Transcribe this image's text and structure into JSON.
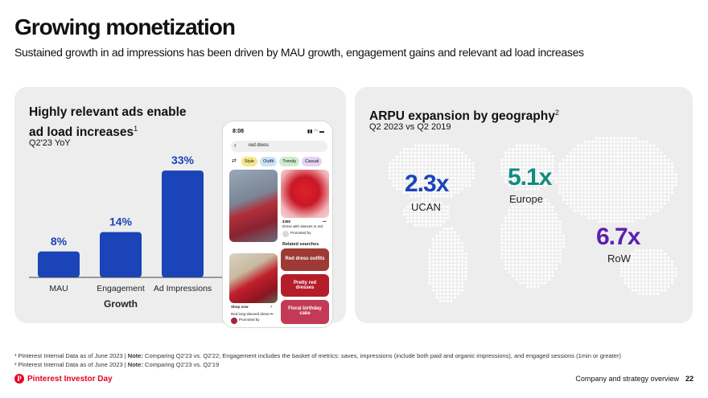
{
  "header": {
    "title": "Growing monetization",
    "subtitle": "Sustained growth in ad impressions has been driven by MAU growth, engagement gains and relevant ad load increases"
  },
  "left_card": {
    "title_line1": "Highly relevant ads enable",
    "title_line2": "ad load increases",
    "title_sup": "1",
    "subtitle": "Q2'23 YoY"
  },
  "chart_data": {
    "type": "bar",
    "categories": [
      "MAU",
      "Engagement",
      "Ad Impressions"
    ],
    "values": [
      8,
      14,
      33
    ],
    "data_labels": [
      "8%",
      "14%",
      "33%"
    ],
    "xlabel": "Growth",
    "ylim": [
      0,
      36
    ],
    "bar_color": "#1a44b8"
  },
  "phone": {
    "time": "8:08",
    "status_icons": "▮▮ ◠ ▬",
    "back_icon": "chevron-left-icon",
    "search_text": "red dress",
    "chips": [
      "Style",
      "Outfit",
      "Trendy",
      "Casual"
    ],
    "filter_icon": "filter-icon",
    "price": "$389",
    "product_desc": "Dress with sleeves in red",
    "promoted_by": "Promoted by",
    "related_title": "Related searches",
    "related": [
      "Red dress outfits",
      "Pretty red dresses",
      "Floral birthday cake"
    ],
    "shop_now": "Shop now",
    "shop_desc": "Red long-sleeved dress",
    "promoted_by2": "Promoted by"
  },
  "right_card": {
    "title": "ARPU expansion by geography",
    "title_sup": "2",
    "subtitle": "Q2 2023 vs Q2 2019",
    "stats": [
      {
        "value": "2.3x",
        "label": "UCAN",
        "color": "#1a44b8"
      },
      {
        "value": "5.1x",
        "label": "Europe",
        "color": "#0f8c80"
      },
      {
        "value": "6.7x",
        "label": "RoW",
        "color": "#5b1fb0"
      }
    ]
  },
  "footnotes": {
    "f1_pre": "¹ Pinterest Internal Data as of June 2023 | ",
    "f1_bold": "Note:",
    "f1_post": " Comparing Q2'23 vs. Q2'22; Engagement includes the basket of metrics: saves, impressions (include both paid and organic impressions), and engaged sessions (1min or greater)",
    "f2_pre": "² Pinterest Internal Data as of June 2023 | ",
    "f2_bold": "Note:",
    "f2_post": " Comparing Q2'23 vs. Q2'19"
  },
  "footer": {
    "brand": "Pinterest Investor Day",
    "logo_icon": "pinterest-logo-icon",
    "section": "Company and strategy overview",
    "page": "22"
  },
  "colors": {
    "brand_red": "#e60023",
    "card_bg": "#ededed",
    "map_dots": "#ffffff"
  }
}
